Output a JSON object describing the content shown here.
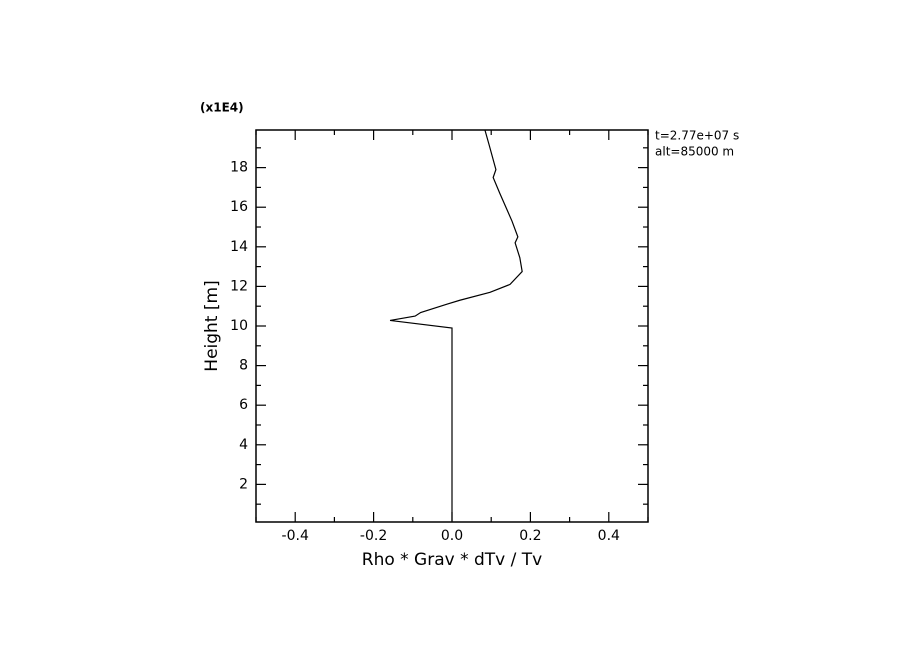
{
  "chart_data": {
    "type": "line",
    "xlabel": "Rho * Grav * dTv / Tv",
    "ylabel": "Height [m]",
    "yscale_label": "(x1E4)",
    "annotations": [
      "t=2.77e+07 s",
      "alt=85000 m"
    ],
    "xlim": [
      -0.5,
      0.5
    ],
    "ylim": [
      0.1,
      19.9
    ],
    "xticks": [
      -0.4,
      -0.2,
      {
        "value": 0,
        "label": "0.0"
      },
      0.2,
      0.4
    ],
    "yticks": [
      2,
      4,
      6,
      8,
      10,
      12,
      14,
      16,
      18
    ],
    "xminorticks": [
      -0.5,
      -0.3,
      -0.1,
      0.1,
      0.3,
      0.5
    ],
    "yminorticks": [
      1,
      3,
      5,
      7,
      9,
      11,
      13,
      15,
      17,
      19
    ],
    "color": "#000000",
    "x": [
      0.0,
      0.0,
      -0.158,
      -0.094,
      -0.08,
      -0.013,
      0.02,
      0.097,
      0.148,
      0.179,
      0.173,
      0.161,
      0.168,
      0.153,
      0.122,
      0.105,
      0.112,
      0.094,
      0.084
    ],
    "values": [
      0.15,
      9.9,
      10.28,
      10.5,
      10.68,
      11.1,
      11.3,
      11.7,
      12.1,
      12.75,
      13.45,
      14.2,
      14.5,
      15.3,
      16.7,
      17.5,
      17.9,
      19.2,
      19.9
    ]
  }
}
